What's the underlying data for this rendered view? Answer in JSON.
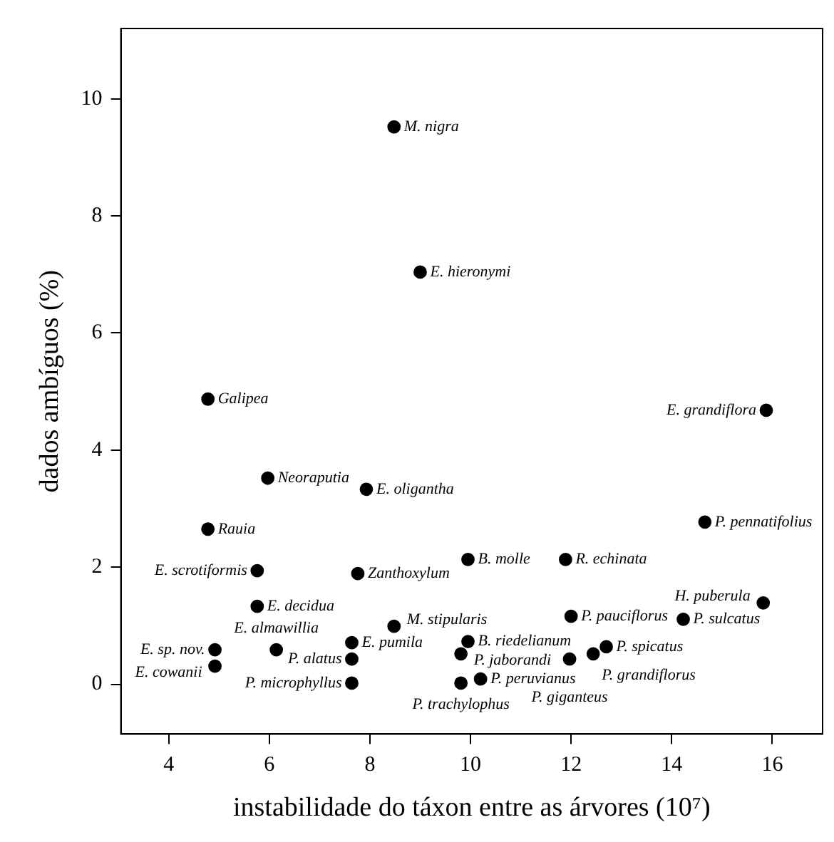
{
  "chart_data": {
    "type": "scatter",
    "xlabel": "instabilidade do táxon entre as árvores (10⁷)",
    "ylabel": "dados ambíguos (%)",
    "xlim": [
      3.05,
      17.0
    ],
    "ylim": [
      -0.85,
      11.2
    ],
    "xticks": [
      4,
      6,
      8,
      10,
      12,
      14,
      16
    ],
    "yticks": [
      0,
      2,
      4,
      6,
      8,
      10
    ],
    "grid": false,
    "legend": false,
    "marker": "circle",
    "series": [
      {
        "color": "#000000",
        "x": [
          8.48,
          9.0,
          4.78,
          15.88,
          5.97,
          7.93,
          14.66,
          4.78,
          9.95,
          11.89,
          5.76,
          7.76,
          15.82,
          5.76,
          14.23,
          12.0,
          8.48,
          7.64,
          9.95,
          12.7,
          12.44,
          11.97,
          9.81,
          7.64,
          4.92,
          6.14,
          4.92,
          7.64,
          9.81,
          10.2
        ],
        "values": [
          9.52,
          7.04,
          4.87,
          4.68,
          3.52,
          3.33,
          2.77,
          2.65,
          2.13,
          2.13,
          1.94,
          1.89,
          1.39,
          1.33,
          1.11,
          1.16,
          0.99,
          0.71,
          0.73,
          0.64,
          0.52,
          0.43,
          0.52,
          0.43,
          0.59,
          0.59,
          0.31,
          0.02,
          0.02,
          0.09
        ]
      }
    ],
    "annotations": [
      {
        "text": "M. nigra",
        "x": 8.48,
        "y": 9.52
      },
      {
        "text": "E. hieronymi",
        "x": 9.0,
        "y": 7.04
      },
      {
        "text": "Galipea",
        "x": 4.78,
        "y": 4.87
      },
      {
        "text": "E. grandiflora",
        "x": 15.88,
        "y": 4.68
      },
      {
        "text": "Neoraputia",
        "x": 5.97,
        "y": 3.52
      },
      {
        "text": "E. oligantha",
        "x": 7.93,
        "y": 3.33
      },
      {
        "text": "P. pennatifolius",
        "x": 14.66,
        "y": 2.77
      },
      {
        "text": "Rauia",
        "x": 4.78,
        "y": 2.65
      },
      {
        "text": "B. molle",
        "x": 9.95,
        "y": 2.13
      },
      {
        "text": "R. echinata",
        "x": 11.89,
        "y": 2.13
      },
      {
        "text": "E. scrotiformis",
        "x": 5.76,
        "y": 1.94
      },
      {
        "text": "Zanthoxylum",
        "x": 7.76,
        "y": 1.89
      },
      {
        "text": "H. puberula",
        "x": 15.82,
        "y": 1.39
      },
      {
        "text": "E. decidua",
        "x": 5.76,
        "y": 1.33
      },
      {
        "text": "P. sulcatus",
        "x": 14.23,
        "y": 1.11
      },
      {
        "text": "P. pauciflorus",
        "x": 12.0,
        "y": 1.16
      },
      {
        "text": "M. stipularis",
        "x": 8.48,
        "y": 0.99
      },
      {
        "text": "E. pumila",
        "x": 7.64,
        "y": 0.71
      },
      {
        "text": "B. riedelianum",
        "x": 9.95,
        "y": 0.73
      },
      {
        "text": "P. spicatus",
        "x": 12.7,
        "y": 0.64
      },
      {
        "text": "P. grandiflorus",
        "x": 12.44,
        "y": 0.52
      },
      {
        "text": "P. giganteus",
        "x": 11.97,
        "y": 0.43
      },
      {
        "text": "P. jaborandi",
        "x": 9.81,
        "y": 0.52
      },
      {
        "text": "P. alatus",
        "x": 7.64,
        "y": 0.43
      },
      {
        "text": "E. sp. nov.",
        "x": 4.92,
        "y": 0.59
      },
      {
        "text": "E. almawillia",
        "x": 6.14,
        "y": 0.59
      },
      {
        "text": "E. cowanii",
        "x": 4.92,
        "y": 0.31
      },
      {
        "text": "P. microphyllus",
        "x": 7.64,
        "y": 0.02
      },
      {
        "text": "P. trachylophus",
        "x": 9.81,
        "y": 0.02
      },
      {
        "text": "P. peruvianus",
        "x": 10.2,
        "y": 0.09
      }
    ]
  }
}
